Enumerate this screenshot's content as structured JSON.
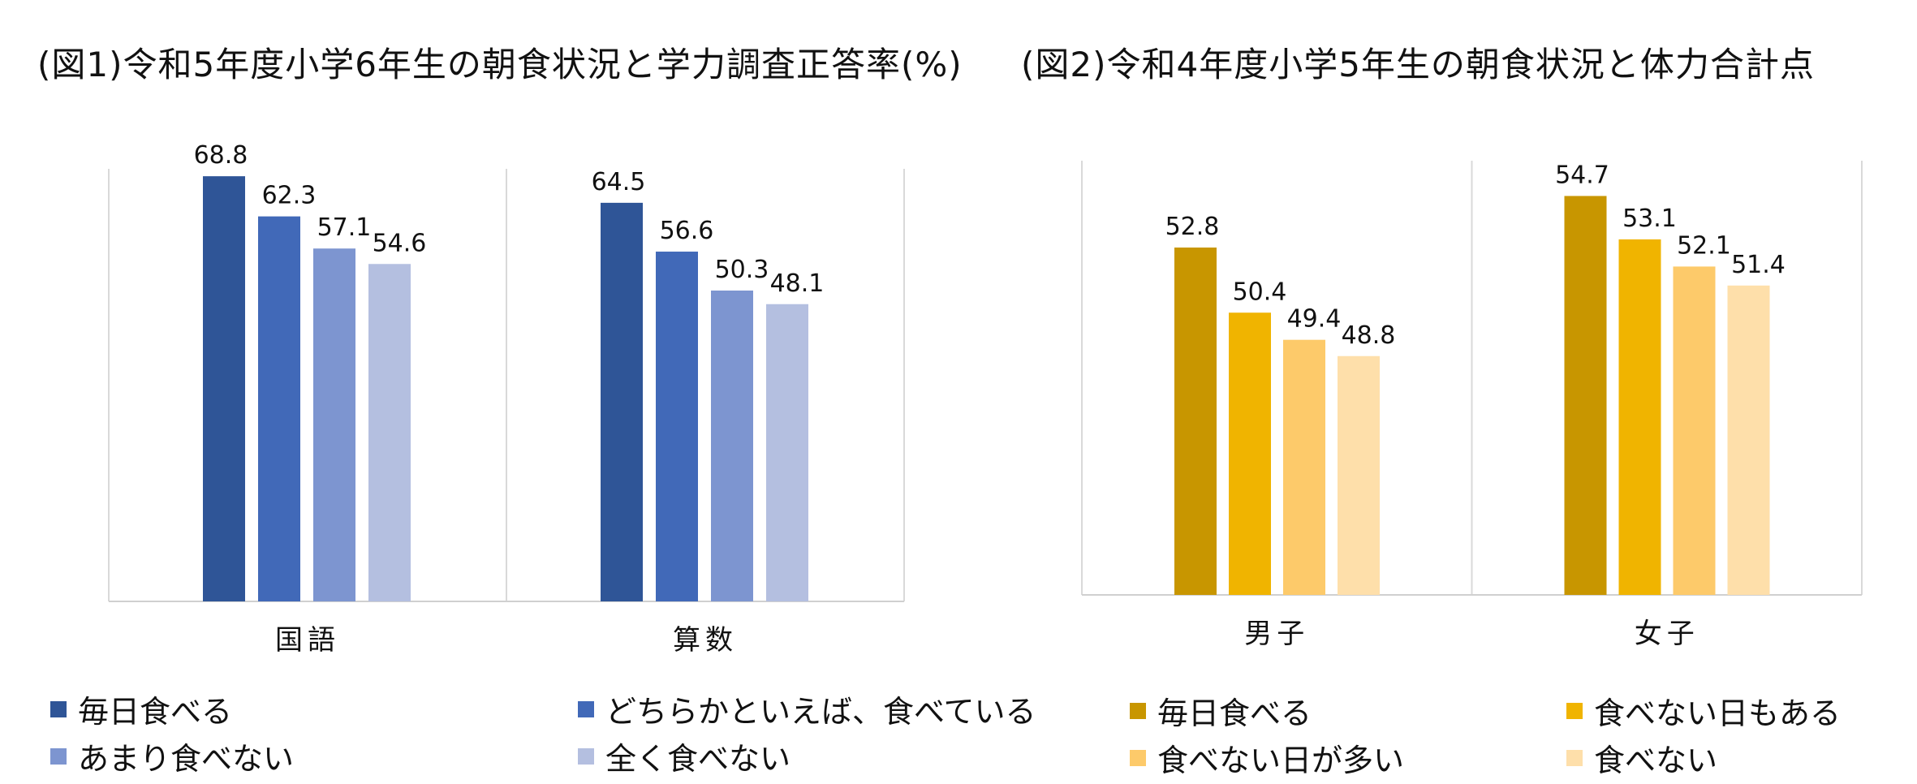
{
  "chart_data": [
    {
      "type": "bar",
      "title": "(図1)令和5年度小学6年生の朝食状況と学力調査正答率(%)",
      "categories": [
        "国語",
        "算数"
      ],
      "series": [
        {
          "name": "毎日食べる",
          "color": "#2f5597",
          "values": [
            68.8,
            64.5
          ]
        },
        {
          "name": "どちらかといえば、食べている",
          "color": "#4169b8",
          "values": [
            62.3,
            56.6
          ]
        },
        {
          "name": "あまり食べない",
          "color": "#7d95d0",
          "values": [
            57.1,
            50.3
          ]
        },
        {
          "name": "全く食べない",
          "color": "#b4bfe0",
          "values": [
            54.6,
            48.1
          ]
        }
      ],
      "ylim": [
        0,
        70
      ],
      "xlabel": "",
      "ylabel": "",
      "legend": "bottom"
    },
    {
      "type": "bar",
      "title": "(図2)令和4年度小学5年生の朝食状況と体力合計点",
      "categories": [
        "男子",
        "女子"
      ],
      "series": [
        {
          "name": "毎日食べる",
          "color": "#c89600",
          "values": [
            52.8,
            54.7
          ]
        },
        {
          "name": "食べない日もある",
          "color": "#f0b400",
          "values": [
            50.4,
            53.1
          ]
        },
        {
          "name": "食べない日が多い",
          "color": "#fdca6a",
          "values": [
            49.4,
            52.1
          ]
        },
        {
          "name": "食べない",
          "color": "#fedfaa",
          "values": [
            48.8,
            51.4
          ]
        }
      ],
      "ylim": [
        40,
        56
      ],
      "xlabel": "",
      "ylabel": "",
      "legend": "bottom"
    }
  ]
}
